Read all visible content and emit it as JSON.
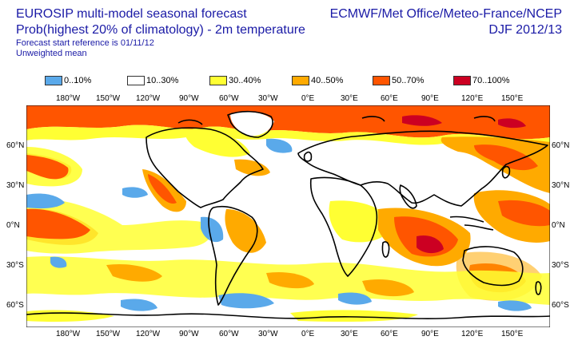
{
  "header": {
    "title": "EUROSIP multi-model seasonal forecast",
    "subtitle": "Prob(highest 20% of climatology) - 2m temperature",
    "forecast_start": "Forecast start reference is 01/11/12",
    "weighting": "Unweighted mean",
    "organizations": "ECMWF/Met Office/Meteo-France/NCEP",
    "period": "DJF 2012/13"
  },
  "legend": {
    "items": [
      {
        "label": "0..10%",
        "color": "#5aa9ea"
      },
      {
        "label": "10..30%",
        "color": "#ffffff"
      },
      {
        "label": "30..40%",
        "color": "#ffff33"
      },
      {
        "label": "40..50%",
        "color": "#ffaa00"
      },
      {
        "label": "50..70%",
        "color": "#ff5500"
      },
      {
        "label": "70..100%",
        "color": "#cc0022"
      }
    ]
  },
  "axes": {
    "lon_labels": [
      "180°W",
      "150°W",
      "120°W",
      "90°W",
      "60°W",
      "30°W",
      "0°E",
      "30°E",
      "60°E",
      "90°E",
      "120°E",
      "150°E"
    ],
    "lat_labels_left": [
      "60°N",
      "30°N",
      "0°N",
      "30°S",
      "60°S"
    ],
    "lat_labels_right": [
      "60°N",
      "30°N",
      "0°N",
      "30°S",
      "60°S"
    ]
  },
  "colors": {
    "text": "#1a1aa6",
    "coast": "#000000"
  }
}
